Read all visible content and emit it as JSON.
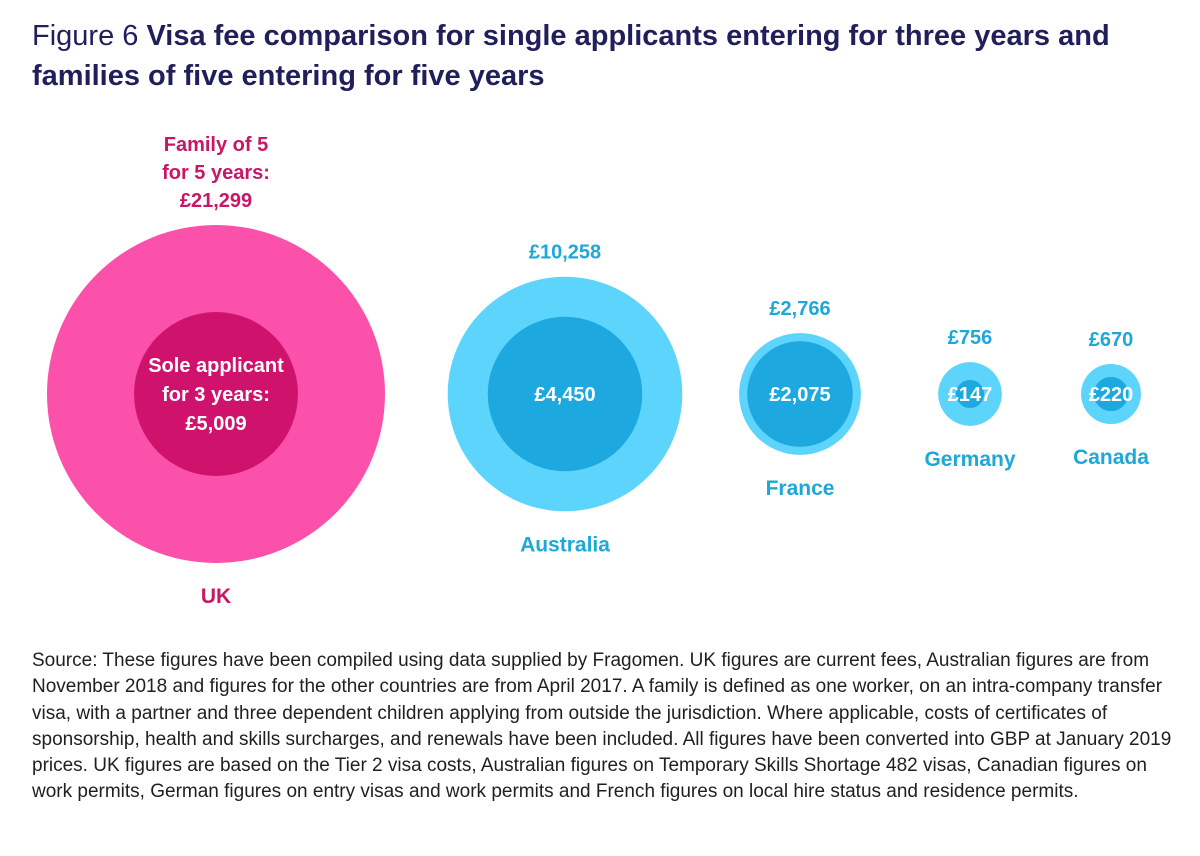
{
  "title": {
    "figure_label": "Figure 6",
    "text": "Visa fee comparison for single applicants entering for three years and families of five entering for five years"
  },
  "source_note": "Source: These figures have been compiled using data supplied by Fragomen. UK figures are current fees, Australian figures are from November 2018 and figures for the other countries are from April 2017. A family is defined as one worker, on an intra-company transfer visa, with a partner and three dependent children applying from outside the jurisdiction. Where applicable, costs of certificates of sponsorship, health and skills surcharges, and renewals have been included. All figures have been converted into GBP at January 2019 prices. UK figures are based on the Tier 2 visa costs, Australian figures on Temporary Skills Shortage 482 visas, Canadian figures on work permits, German figures on entry visas and work permits and French figures on local hire status and residence permits.",
  "chart_data": {
    "type": "bubble",
    "currency": "GBP",
    "grid": false,
    "categories": [
      "UK",
      "Australia",
      "France",
      "Germany",
      "Canada"
    ],
    "series": [
      {
        "name": "Family of 5 for 5 years",
        "values": [
          21299,
          10258,
          2766,
          756,
          670
        ]
      },
      {
        "name": "Sole applicant for 3 years",
        "values": [
          5009,
          4450,
          2075,
          147,
          220
        ]
      }
    ],
    "outer_labels": [
      [
        "Family of 5",
        "for 5 years:",
        "£21,299"
      ],
      [
        "£10,258"
      ],
      [
        "£2,766"
      ],
      [
        "£756"
      ],
      [
        "£670"
      ]
    ],
    "inner_labels": [
      [
        "Sole applicant",
        "for 3 years:",
        "£5,009"
      ],
      [
        "£4,450"
      ],
      [
        "£2,075"
      ],
      [
        "£147"
      ],
      [
        "£220"
      ]
    ],
    "colors": [
      {
        "outer": "#fc51ab",
        "inner": "#cf136c",
        "label": "#c91666"
      },
      {
        "outer": "#5cd4fc",
        "inner": "#1da8e0",
        "label": "#1da8d8"
      },
      {
        "outer": "#5cd4fc",
        "inner": "#1da8e0",
        "label": "#1da8d8"
      },
      {
        "outer": "#5cd4fc",
        "inner": "#1da8e0",
        "label": "#1da8d8"
      },
      {
        "outer": "#5cd4fc",
        "inner": "#1da8e0",
        "label": "#1da8d8"
      }
    ],
    "inner_text_color": "#ffffff"
  }
}
